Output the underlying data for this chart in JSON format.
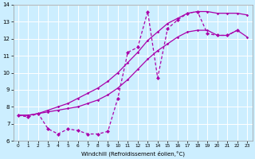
{
  "xlabel": "Windchill (Refroidissement éolien,°C)",
  "bg_color": "#cceeff",
  "line_color": "#aa00aa",
  "grid_color": "#ffffff",
  "xlim": [
    -0.5,
    23.5
  ],
  "ylim": [
    6,
    14
  ],
  "xticks": [
    0,
    1,
    2,
    3,
    4,
    5,
    6,
    7,
    8,
    9,
    10,
    11,
    12,
    13,
    14,
    15,
    16,
    17,
    18,
    19,
    20,
    21,
    22,
    23
  ],
  "yticks": [
    6,
    7,
    8,
    9,
    10,
    11,
    12,
    13,
    14
  ],
  "line1_x": [
    0,
    1,
    2,
    3,
    4,
    5,
    6,
    7,
    8,
    9,
    10,
    11,
    12,
    13,
    14,
    15,
    16,
    17,
    18,
    19,
    20,
    21,
    22,
    23
  ],
  "line1_y": [
    7.5,
    7.5,
    7.6,
    7.7,
    7.8,
    7.9,
    8.0,
    8.2,
    8.4,
    8.7,
    9.1,
    9.6,
    10.2,
    10.8,
    11.3,
    11.7,
    12.1,
    12.4,
    12.5,
    12.5,
    12.2,
    12.2,
    12.5,
    12.1
  ],
  "line2_x": [
    0,
    1,
    2,
    3,
    4,
    5,
    6,
    7,
    8,
    9,
    10,
    11,
    12,
    13,
    14,
    15,
    16,
    17,
    18,
    19,
    20,
    21,
    22,
    23
  ],
  "line2_y": [
    7.5,
    7.5,
    7.6,
    7.8,
    8.0,
    8.2,
    8.5,
    8.8,
    9.1,
    9.5,
    10.0,
    10.6,
    11.2,
    11.9,
    12.4,
    12.9,
    13.2,
    13.5,
    13.6,
    13.6,
    13.5,
    13.5,
    13.5,
    13.4
  ],
  "line3_x": [
    0,
    1,
    2,
    3,
    4,
    5,
    6,
    7,
    8,
    9,
    10,
    11,
    12,
    13,
    14,
    15,
    16,
    17,
    18,
    19,
    20,
    21,
    22
  ],
  "line3_y": [
    7.5,
    7.4,
    7.6,
    6.7,
    6.4,
    6.7,
    6.6,
    6.4,
    6.4,
    6.55,
    8.5,
    11.2,
    11.5,
    13.6,
    9.7,
    12.6,
    13.1,
    13.5,
    13.6,
    12.3,
    12.2,
    12.2,
    12.5
  ]
}
